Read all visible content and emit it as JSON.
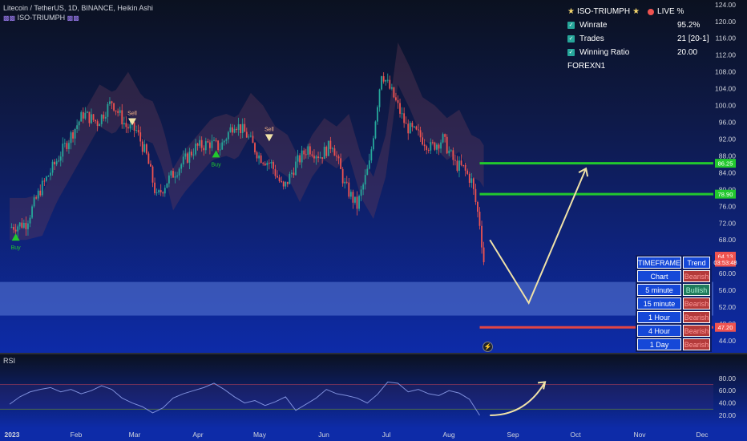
{
  "header": {
    "symbol_line": "Litecoin / TetherUS, 1D, BINANCE, Heikin Ashi",
    "indicator_line": "ISO-TRIUMPH"
  },
  "stats": {
    "title": "ISO-TRIUMPH",
    "live": "LIVE %",
    "rows": [
      {
        "label": "Winrate",
        "value": "95.2%"
      },
      {
        "label": "Trades",
        "value": "21 [20-1]"
      },
      {
        "label": "Winning Ratio",
        "value": "20.00"
      }
    ],
    "footer": "FOREXN1"
  },
  "timeframe_table": {
    "headers": [
      "TIMEFRAME",
      "Trend"
    ],
    "rows": [
      {
        "tf": "Chart",
        "trend": "Bearish"
      },
      {
        "tf": "5 minute",
        "trend": "Bullish"
      },
      {
        "tf": "15 minute",
        "trend": "Bearish"
      },
      {
        "tf": "1 Hour",
        "trend": "Bearish"
      },
      {
        "tf": "4 Hour",
        "trend": "Bearish"
      },
      {
        "tf": "1 Day",
        "trend": "Bearish"
      }
    ]
  },
  "flash_icon": "lightning-icon",
  "colors": {
    "bull": "#26a69a",
    "bear": "#ef5350",
    "level_green": "#22c82e",
    "level_red": "#e04545",
    "arrow": "#f0e2a8",
    "background_top": "#0b1120",
    "background_bottom": "#0d2ba8"
  },
  "chart_data": [
    {
      "type": "candlestick",
      "title": "Litecoin / TetherUS, 1D, BINANCE, Heikin Ashi",
      "x_labels": [
        "2023",
        "Feb",
        "Mar",
        "Apr",
        "May",
        "Jun",
        "Jul",
        "Aug",
        "Sep",
        "Oct",
        "Nov",
        "Dec"
      ],
      "y_ticks": [
        44,
        48,
        52,
        56,
        60,
        64,
        68,
        72,
        76,
        80,
        84,
        88,
        92,
        96,
        100,
        104,
        108,
        112,
        116,
        120,
        124
      ],
      "ylim": [
        42,
        125
      ],
      "price_labels": [
        {
          "text": "86.25",
          "value": 86.25,
          "color": "#22c82e"
        },
        {
          "text": "78.90",
          "value": 78.9,
          "color": "#22c82e"
        },
        {
          "text": "64.13",
          "value": 64.13,
          "color": "#ef5350"
        },
        {
          "text": "03:53:48",
          "value": 62.7,
          "color": "#ef5350"
        },
        {
          "text": "47.20",
          "value": 47.2,
          "color": "#ef5350"
        }
      ],
      "levels": [
        {
          "value": 86.25,
          "color": "#22c82e"
        },
        {
          "value": 78.9,
          "color": "#22c82e"
        },
        {
          "value": 47.2,
          "color": "#e04545"
        }
      ],
      "zone": {
        "from": 50,
        "to": 58
      },
      "signals": [
        {
          "label": "Buy",
          "day": 3,
          "value": 68.6
        },
        {
          "label": "Sell",
          "day": 60,
          "value": 96.2
        },
        {
          "label": "Buy",
          "day": 101,
          "value": 88.4
        },
        {
          "label": "Sell",
          "day": 127,
          "value": 92.4
        }
      ],
      "projection": [
        {
          "day": 235,
          "value": 68
        },
        {
          "day": 254,
          "value": 53
        },
        {
          "day": 282,
          "value": 85
        }
      ],
      "price_path": [
        [
          0,
          71
        ],
        [
          8,
          72
        ],
        [
          15,
          80
        ],
        [
          22,
          86
        ],
        [
          29,
          92
        ],
        [
          36,
          98
        ],
        [
          43,
          96
        ],
        [
          50,
          101
        ],
        [
          57,
          95
        ],
        [
          62,
          94
        ],
        [
          67,
          88
        ],
        [
          72,
          78
        ],
        [
          77,
          82
        ],
        [
          84,
          86
        ],
        [
          91,
          90
        ],
        [
          98,
          91
        ],
        [
          103,
          90
        ],
        [
          110,
          96
        ],
        [
          116,
          93
        ],
        [
          122,
          88
        ],
        [
          128,
          86
        ],
        [
          134,
          80
        ],
        [
          140,
          86
        ],
        [
          146,
          90
        ],
        [
          152,
          88
        ],
        [
          158,
          91
        ],
        [
          164,
          81
        ],
        [
          170,
          76
        ],
        [
          176,
          86
        ],
        [
          182,
          108
        ],
        [
          188,
          102
        ],
        [
          194,
          95
        ],
        [
          200,
          93
        ],
        [
          206,
          90
        ],
        [
          212,
          92
        ],
        [
          218,
          86
        ],
        [
          222,
          85
        ],
        [
          226,
          82
        ],
        [
          230,
          72
        ],
        [
          232,
          63
        ]
      ]
    },
    {
      "type": "line",
      "title": "RSI",
      "y_ticks": [
        20,
        40,
        60,
        80
      ],
      "ylim": [
        10,
        90
      ],
      "bands": [
        70,
        30
      ],
      "x": [
        0,
        5,
        10,
        15,
        20,
        25,
        30,
        35,
        40,
        45,
        50,
        55,
        60,
        65,
        70,
        75,
        80,
        85,
        90,
        95,
        100,
        105,
        110,
        115,
        120,
        125,
        130,
        135,
        140,
        145,
        150,
        155,
        160,
        165,
        170,
        175,
        180,
        185,
        190,
        195,
        200,
        205,
        210,
        215,
        220,
        225,
        230
      ],
      "values": [
        38,
        50,
        58,
        62,
        65,
        58,
        62,
        55,
        60,
        68,
        62,
        48,
        40,
        34,
        24,
        32,
        48,
        55,
        60,
        65,
        72,
        62,
        50,
        40,
        44,
        36,
        42,
        50,
        28,
        38,
        48,
        62,
        55,
        52,
        48,
        40,
        54,
        74,
        72,
        58,
        62,
        55,
        52,
        60,
        56,
        46,
        20
      ],
      "projection": [
        {
          "day": 235,
          "value": 20
        },
        {
          "day": 262,
          "value": 74
        }
      ]
    }
  ]
}
